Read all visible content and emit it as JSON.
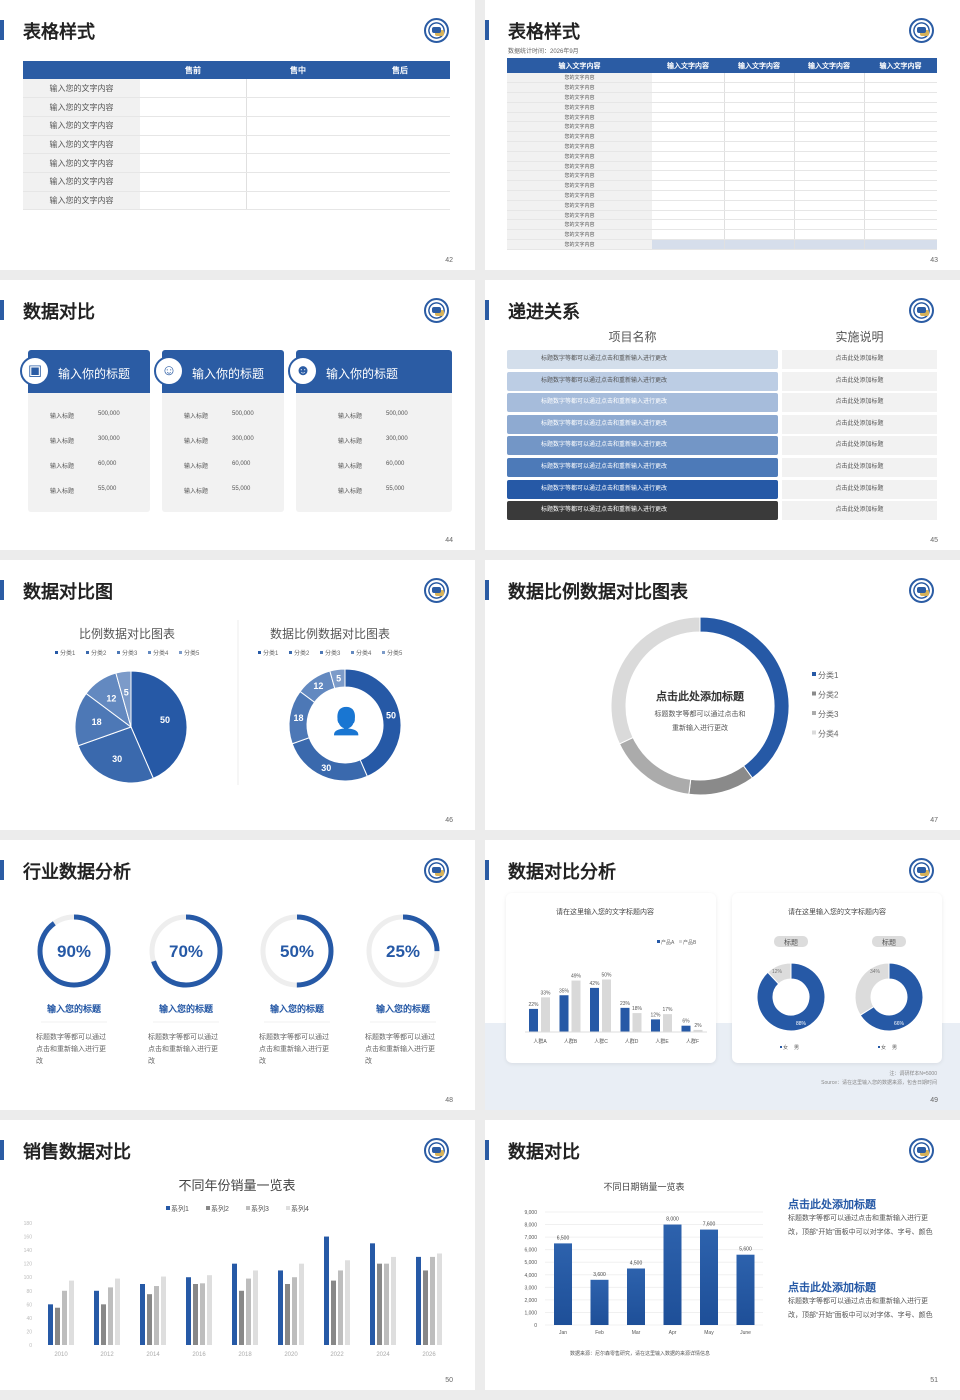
{
  "colors": {
    "accent": "#2b5ca4",
    "dark": "#3a3a3a",
    "gray": "#8a8a8a",
    "light_gray": "#d9d9d9"
  },
  "logo_icon": "school-emblem-icon",
  "s42": {
    "title": "表格样式",
    "page": "42",
    "headers": [
      "",
      "售前",
      "售中",
      "售后"
    ],
    "rows": [
      "输入您的文字内容",
      "输入您的文字内容",
      "输入您的文字内容",
      "输入您的文字内容",
      "输入您的文字内容",
      "输入您的文字内容",
      "输入您的文字内容"
    ]
  },
  "s43": {
    "title": "表格样式",
    "page": "43",
    "subtitle": "数据统计时间：2026年9月",
    "headers": [
      "输入文字内容",
      "输入文字内容",
      "输入文字内容",
      "输入文字内容",
      "输入文字内容"
    ],
    "rows": [
      "您的文字内容",
      "您的文字内容",
      "您的文字内容",
      "您的文字内容",
      "您的文字内容",
      "您的文字内容",
      "您的文字内容",
      "您的文字内容",
      "您的文字内容",
      "您的文字内容",
      "您的文字内容",
      "您的文字内容",
      "您的文字内容",
      "您的文字内容",
      "您的文字内容",
      "您的文字内容",
      "您的文字内容",
      "您的文字内容"
    ]
  },
  "s44": {
    "title": "数据对比",
    "page": "44",
    "cards": [
      {
        "icon": "user-card-add-icon",
        "title": "输入你的标题",
        "items": [
          {
            "label": "输入标题",
            "value": "500,000"
          },
          {
            "label": "输入标题",
            "value": "300,000"
          },
          {
            "label": "输入标题",
            "value": "60,000"
          },
          {
            "label": "输入标题",
            "value": "55,000"
          }
        ]
      },
      {
        "icon": "user-add-icon",
        "title": "输入你的标题",
        "items": [
          {
            "label": "输入标题",
            "value": "500,000"
          },
          {
            "label": "输入标题",
            "value": "300,000"
          },
          {
            "label": "输入标题",
            "value": "60,000"
          },
          {
            "label": "输入标题",
            "value": "55,000"
          }
        ]
      },
      {
        "icon": "user-group-icon",
        "title": "输入你的标题",
        "items": [
          {
            "label": "输入标题",
            "value": "500,000"
          },
          {
            "label": "输入标题",
            "value": "300,000"
          },
          {
            "label": "输入标题",
            "value": "60,000"
          },
          {
            "label": "输入标题",
            "value": "55,000"
          }
        ]
      }
    ]
  },
  "s45": {
    "title": "递进关系",
    "page": "45",
    "col1": "项目名称",
    "col2": "实施说明",
    "rows": [
      {
        "name": "标题数字等都可以通过点击和重新输入进行更改",
        "desc": "点击此处添加标题",
        "color": "#d3deeb"
      },
      {
        "name": "标题数字等都可以通过点击和重新输入进行更改",
        "desc": "点击此处添加标题",
        "color": "#bccde4"
      },
      {
        "name": "标题数字等都可以通过点击和重新输入进行更改",
        "desc": "点击此处添加标题",
        "color": "#a6bcdb"
      },
      {
        "name": "标题数字等都可以通过点击和重新输入进行更改",
        "desc": "点击此处添加标题",
        "color": "#8eaad1"
      },
      {
        "name": "标题数字等都可以通过点击和重新输入进行更改",
        "desc": "点击此处添加标题",
        "color": "#7396c6"
      },
      {
        "name": "标题数字等都可以通过点击和重新输入进行更改",
        "desc": "点击此处添加标题",
        "color": "#4d7ab8"
      },
      {
        "name": "标题数字等都可以通过点击和重新输入进行更改",
        "desc": "点击此处添加标题",
        "color": "#2659a6"
      },
      {
        "name": "标题数字等都可以通过点击和重新输入进行更改",
        "desc": "点击此处添加标题",
        "color": "#3a3a3a"
      }
    ]
  },
  "s46": {
    "title": "数据对比图",
    "page": "46"
  },
  "s47": {
    "title": "数据比例数据对比图表",
    "page": "47",
    "center_title": "点击此处添加标题",
    "center_text1": "标题数字等都可以通过点击和",
    "center_text2": "重新输入进行更改"
  },
  "s48": {
    "title": "行业数据分析",
    "page": "48",
    "items": [
      {
        "percent": "90%",
        "value": 0.9,
        "title": "输入您的标题",
        "desc": "标题数字等都可以通过点击和重新输入进行更改"
      },
      {
        "percent": "70%",
        "value": 0.7,
        "title": "输入您的标题",
        "desc": "标题数字等都可以通过点击和重新输入进行更改"
      },
      {
        "percent": "50%",
        "value": 0.5,
        "title": "输入您的标题",
        "desc": "标题数字等都可以通过点击和重新输入进行更改"
      },
      {
        "percent": "25%",
        "value": 0.25,
        "title": "输入您的标题",
        "desc": "标题数字等都可以通过点击和重新输入进行更改"
      }
    ]
  },
  "s49": {
    "title": "数据对比分析",
    "page": "49",
    "note": "注：调研样本N=5000",
    "source": "Source：请在这里输入您的数据来源，包含日期时间"
  },
  "s50": {
    "title": "销售数据对比",
    "page": "50"
  },
  "s51": {
    "title": "数据对比",
    "page": "51",
    "source": "数据来源：尼尔森零售研究，请在这里输入数据的来源详情信息",
    "blocks": [
      {
        "heading": "点击此处添加标题",
        "text": "标题数字等都可以通过点击和重新输入进行更改，顶部“开始”面板中可以对字体、字号、颜色"
      },
      {
        "heading": "点击此处添加标题",
        "text": "标题数字等都可以通过点击和重新输入进行更改，顶部“开始”面板中可以对字体、字号、颜色"
      }
    ]
  },
  "chart_data": [
    {
      "id": "s46-pie",
      "type": "pie",
      "title": "比例数据对比图表",
      "legend": [
        "分类1",
        "分类2",
        "分类3",
        "分类4",
        "分类5"
      ],
      "values": [
        50,
        30,
        18,
        12,
        5
      ],
      "colors": [
        "#2659a6",
        "#3a69ad",
        "#4d78b6",
        "#6389c0",
        "#7c9bc9"
      ],
      "legend_position": "top"
    },
    {
      "id": "s46-donut",
      "type": "pie",
      "title": "数据比例数据对比图表",
      "legend": [
        "分类1",
        "分类2",
        "分类3",
        "分类4",
        "分类5"
      ],
      "values": [
        50,
        30,
        18,
        12,
        5
      ],
      "colors": [
        "#2659a6",
        "#3a69ad",
        "#4d78b6",
        "#6389c0",
        "#7c9bc9"
      ],
      "donut": true,
      "legend_position": "top"
    },
    {
      "id": "s47-donut",
      "type": "pie",
      "legend": [
        "分类1",
        "分类2",
        "分类3",
        "分类4"
      ],
      "values": [
        40,
        12,
        16,
        32
      ],
      "colors": [
        "#2659a6",
        "#8a8a8a",
        "#ababab",
        "#dadada"
      ],
      "donut": true,
      "legend_position": "right"
    },
    {
      "id": "s49-bar",
      "type": "bar",
      "title": "请在这里输入您的文字标题内容",
      "categories": [
        "人群A",
        "人群B",
        "人群C",
        "人群D",
        "人群E",
        "人群F"
      ],
      "series": [
        {
          "name": "产品A",
          "values": [
            22,
            35,
            42,
            23,
            12,
            6
          ]
        },
        {
          "name": "产品B",
          "values": [
            33,
            49,
            50,
            18,
            17,
            2
          ]
        }
      ],
      "unit": "%",
      "legend_position": "top-right"
    },
    {
      "id": "s49-donuts",
      "type": "pie",
      "title": "请在这里输入您的文字标题内容",
      "charts": [
        {
          "label": "标题",
          "legend": [
            "女",
            "男"
          ],
          "values": [
            88,
            12
          ]
        },
        {
          "label": "标题",
          "legend": [
            "女",
            "男"
          ],
          "values": [
            66,
            34
          ]
        }
      ]
    },
    {
      "id": "s50-bar",
      "type": "bar",
      "title": "不同年份销量一览表",
      "categories": [
        "2010",
        "2012",
        "2014",
        "2016",
        "2018",
        "2020",
        "2022",
        "2024",
        "2026"
      ],
      "series": [
        {
          "name": "系列1",
          "values": [
            60,
            80,
            90,
            100,
            120,
            110,
            160,
            150,
            130
          ]
        },
        {
          "name": "系列2",
          "values": [
            55,
            60,
            75,
            90,
            80,
            90,
            95,
            120,
            110
          ]
        },
        {
          "name": "系列3",
          "values": [
            80,
            85,
            87,
            91,
            98,
            100,
            110,
            120,
            130
          ]
        },
        {
          "name": "系列4",
          "values": [
            95,
            98,
            101,
            103,
            110,
            120,
            125,
            130,
            135
          ]
        }
      ],
      "colors": [
        "#2659a6",
        "#888888",
        "#bdbdbd",
        "#dedede"
      ],
      "ylim": [
        0,
        180
      ],
      "yticks": [
        0,
        20,
        40,
        60,
        80,
        100,
        120,
        140,
        160,
        180
      ],
      "legend_position": "top"
    },
    {
      "id": "s51-bar",
      "type": "bar",
      "title": "不同日期销量一览表",
      "categories": [
        "Jan",
        "Feb",
        "Mar",
        "Apr",
        "May",
        "June"
      ],
      "values": [
        6500,
        3600,
        4500,
        8000,
        7600,
        5600
      ],
      "labels": [
        "6,500",
        "3,600",
        "4,500",
        "8,000",
        "7,600",
        "5,600"
      ],
      "ylim": [
        0,
        9000
      ],
      "yticks": [
        "0",
        "1,000",
        "2,000",
        "3,000",
        "4,000",
        "5,000",
        "6,000",
        "7,000",
        "8,000",
        "9,000"
      ],
      "grid": true
    }
  ]
}
